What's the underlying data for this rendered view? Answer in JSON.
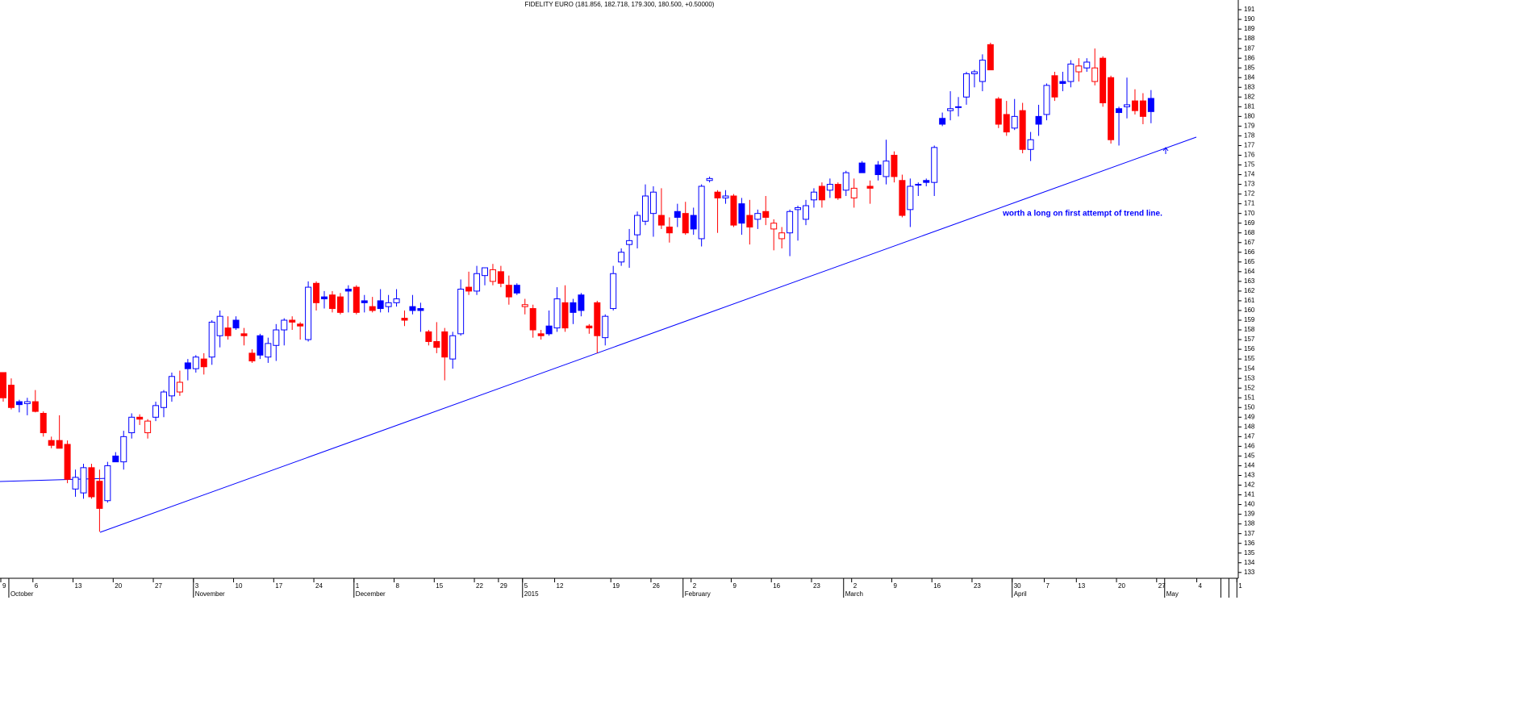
{
  "chart_data": {
    "type": "candlestick",
    "title": "FIDELITY EURO (181.856, 182.718, 179.300, 180.500, +0.50000)",
    "annotation": "worth a long on first attempt of trend line.",
    "up_color": "#0000ff",
    "down_color": "#ff0000",
    "categories": [
      "9",
      null,
      null,
      null,
      "6",
      null,
      null,
      null,
      null,
      "13",
      null,
      null,
      null,
      null,
      "20",
      null,
      null,
      null,
      null,
      "27",
      null,
      null,
      null,
      null,
      "3",
      null,
      null,
      null,
      null,
      "10",
      null,
      null,
      null,
      null,
      "17",
      null,
      null,
      null,
      null,
      "24",
      null,
      null,
      null,
      null,
      "1",
      null,
      null,
      null,
      null,
      "8",
      null,
      null,
      null,
      null,
      "15",
      null,
      null,
      null,
      null,
      "22",
      null,
      null,
      "29",
      null,
      null,
      "5",
      null,
      null,
      null,
      "12",
      null,
      null,
      null,
      null,
      null,
      null,
      "19",
      null,
      null,
      null,
      null,
      "26",
      null,
      null,
      null,
      null,
      "2",
      null,
      null,
      null,
      null,
      "9",
      null,
      null,
      null,
      null,
      "16",
      null,
      null,
      null,
      null,
      "23",
      null,
      null,
      null,
      null,
      "2",
      null,
      null,
      null,
      null,
      "9",
      null,
      null,
      null,
      null,
      "16",
      null,
      null,
      null,
      null,
      "23",
      null,
      null,
      null,
      null,
      "30",
      null,
      null,
      null,
      "7",
      null,
      null,
      null,
      "13",
      null,
      null,
      null,
      null,
      "20",
      null,
      null,
      null,
      null,
      "27",
      null,
      null,
      null,
      null,
      "4",
      null,
      null,
      null,
      null,
      "1"
    ],
    "months": [
      null,
      "October",
      null,
      null,
      null,
      null,
      null,
      null,
      null,
      null,
      null,
      null,
      null,
      null,
      null,
      null,
      null,
      null,
      null,
      null,
      null,
      null,
      null,
      null,
      "November",
      null,
      null,
      null,
      null,
      null,
      null,
      null,
      null,
      null,
      null,
      null,
      null,
      null,
      null,
      null,
      null,
      null,
      null,
      null,
      "December",
      null,
      null,
      null,
      null,
      null,
      null,
      null,
      null,
      null,
      null,
      null,
      null,
      null,
      null,
      null,
      null,
      null,
      null,
      null,
      null,
      "2015",
      null,
      null,
      null,
      null,
      null,
      null,
      null,
      null,
      null,
      null,
      null,
      null,
      null,
      null,
      null,
      null,
      null,
      null,
      null,
      "February",
      null,
      null,
      null,
      null,
      null,
      null,
      null,
      null,
      null,
      null,
      null,
      null,
      null,
      null,
      null,
      null,
      null,
      null,
      null,
      "March",
      null,
      null,
      null,
      null,
      null,
      null,
      null,
      null,
      null,
      null,
      null,
      null,
      null,
      null,
      null,
      null,
      null,
      null,
      null,
      null,
      "April",
      null,
      null,
      null,
      null,
      null,
      null,
      null,
      null,
      null,
      null,
      null,
      null,
      null,
      null,
      null,
      null,
      null,
      null,
      "May",
      null,
      null,
      null,
      null,
      null,
      null
    ],
    "open": [
      153.6,
      152.3,
      150.6,
      150.4,
      150.6,
      149.4,
      146.6,
      146.6,
      146.2,
      141.6,
      141.2,
      143.8,
      142.4,
      140.4,
      145.0,
      144.4,
      147.4,
      149.0,
      147.4,
      149.0,
      150.0,
      151.2,
      151.6,
      154.6,
      154.0,
      155.0,
      155.2,
      157.4,
      158.2,
      159.0,
      157.6,
      155.6,
      157.4,
      155.2,
      156.4,
      158.0,
      159.0,
      158.6,
      157.0,
      162.8,
      161.4,
      161.6,
      161.4,
      162.2,
      162.4,
      161.0,
      160.4,
      161.0,
      160.4,
      160.8,
      159.2,
      160.4,
      160.2,
      157.8,
      156.8,
      157.8,
      155.0,
      157.6,
      162.4,
      162.0,
      163.6,
      163.0,
      164.0,
      162.6,
      162.6,
      160.4,
      160.2,
      157.6,
      158.4,
      158.2,
      160.8,
      160.8,
      161.6,
      158.4,
      160.8,
      157.2,
      160.2,
      165.0,
      166.8,
      167.8,
      169.2,
      170.0,
      169.8,
      168.6,
      170.2,
      170.0,
      169.8,
      167.4,
      173.4,
      172.2,
      171.6,
      171.8,
      171.0,
      169.8,
      169.4,
      170.2,
      168.4,
      167.4,
      168.0,
      170.4,
      169.4,
      171.4,
      172.8,
      172.4,
      173.0,
      172.4,
      171.6,
      175.2,
      172.8,
      175.0,
      173.8,
      176.0,
      173.4,
      170.4,
      173.0,
      173.4,
      173.2,
      179.8,
      180.6,
      181.0,
      182.0,
      184.4,
      183.6,
      187.4,
      181.8,
      180.2,
      178.8,
      180.6,
      176.6,
      180.0,
      180.2,
      184.2,
      183.6,
      183.6,
      184.6,
      185.0,
      183.6,
      186.0,
      184.0,
      180.8,
      181.0,
      181.6,
      181.6,
      181.856,
      null,
      null,
      null,
      null,
      null,
      null,
      null,
      null,
      null,
      null,
      null
    ],
    "high": [
      153.6,
      153.0,
      150.8,
      151.0,
      151.8,
      149.6,
      147.0,
      149.2,
      146.6,
      143.6,
      144.2,
      144.2,
      143.6,
      144.4,
      145.4,
      147.6,
      149.4,
      149.3,
      148.8,
      150.6,
      151.8,
      153.6,
      153.8,
      155.0,
      155.4,
      155.6,
      159.0,
      160.0,
      159.4,
      159.4,
      158.2,
      156.0,
      157.6,
      157.2,
      158.6,
      159.2,
      159.4,
      158.8,
      163.0,
      163.0,
      162.0,
      162.0,
      161.8,
      162.6,
      162.6,
      161.6,
      161.4,
      162.2,
      161.6,
      162.2,
      160.0,
      161.6,
      160.8,
      158.0,
      158.8,
      158.2,
      157.8,
      163.2,
      164.0,
      164.6,
      164.4,
      164.8,
      164.6,
      163.6,
      162.8,
      161.2,
      160.6,
      158.0,
      160.0,
      162.4,
      162.6,
      161.2,
      161.8,
      158.6,
      161.0,
      159.6,
      164.6,
      166.4,
      168.4,
      170.2,
      173.0,
      172.8,
      172.6,
      169.6,
      171.0,
      171.2,
      170.6,
      173.0,
      173.8,
      172.4,
      172.4,
      172.0,
      171.6,
      171.4,
      170.4,
      171.8,
      169.4,
      168.6,
      170.4,
      170.8,
      171.4,
      172.6,
      173.2,
      173.6,
      173.2,
      174.4,
      173.6,
      175.4,
      173.4,
      175.4,
      177.6,
      176.4,
      174.0,
      173.6,
      173.2,
      173.6,
      177.0,
      180.4,
      182.6,
      182.0,
      184.6,
      184.8,
      186.4,
      187.6,
      182.0,
      181.6,
      181.8,
      181.4,
      178.4,
      181.2,
      183.4,
      184.6,
      184.6,
      185.8,
      186.0,
      186.0,
      187.0,
      186.2,
      184.2,
      181.0,
      184.0,
      182.8,
      182.4,
      182.718,
      null,
      null,
      null,
      null,
      null,
      null,
      null,
      null,
      null,
      null,
      null
    ],
    "low": [
      150.6,
      149.8,
      149.5,
      149.2,
      149.5,
      147.0,
      145.8,
      145.8,
      142.2,
      140.8,
      140.6,
      140.6,
      137.2,
      140.2,
      144.4,
      143.6,
      146.8,
      148.2,
      146.8,
      148.6,
      149.0,
      150.6,
      151.2,
      152.8,
      153.6,
      153.4,
      154.4,
      156.2,
      157.0,
      158.0,
      156.4,
      154.6,
      155.0,
      154.6,
      154.8,
      156.4,
      158.0,
      157.0,
      156.8,
      160.0,
      160.2,
      159.8,
      159.6,
      159.8,
      159.6,
      159.8,
      159.8,
      159.8,
      159.8,
      160.4,
      158.4,
      159.6,
      157.8,
      156.4,
      155.6,
      152.8,
      154.0,
      157.4,
      161.6,
      161.6,
      162.6,
      162.6,
      162.4,
      160.6,
      161.6,
      159.6,
      157.2,
      157.0,
      157.4,
      157.8,
      157.8,
      158.6,
      159.4,
      157.6,
      155.6,
      156.4,
      160.0,
      164.6,
      164.4,
      166.4,
      168.8,
      167.6,
      168.4,
      167.0,
      168.6,
      167.8,
      167.8,
      166.6,
      173.2,
      168.0,
      171.0,
      168.6,
      167.8,
      166.8,
      168.4,
      168.8,
      166.2,
      166.4,
      165.6,
      167.2,
      168.8,
      170.6,
      170.6,
      171.6,
      171.4,
      171.8,
      170.6,
      174.2,
      171.0,
      173.4,
      173.0,
      173.2,
      169.6,
      168.6,
      171.8,
      172.8,
      171.8,
      179.0,
      179.6,
      180.0,
      181.2,
      183.0,
      182.6,
      184.8,
      178.8,
      178.0,
      178.6,
      176.2,
      175.4,
      178.0,
      179.6,
      181.6,
      182.6,
      183.0,
      183.6,
      184.6,
      183.2,
      181.0,
      177.2,
      177.0,
      179.8,
      180.2,
      179.2,
      179.3,
      null,
      null,
      null,
      null,
      null,
      null,
      null,
      null,
      null,
      null,
      null
    ],
    "close": [
      151.0,
      150.0,
      150.3,
      150.6,
      149.6,
      147.4,
      146.1,
      145.8,
      142.6,
      142.8,
      143.8,
      140.8,
      139.6,
      144.0,
      144.4,
      147.0,
      149.0,
      148.8,
      148.6,
      150.2,
      151.6,
      153.2,
      152.6,
      154.0,
      155.2,
      154.2,
      158.8,
      159.4,
      157.4,
      158.2,
      157.4,
      154.8,
      155.4,
      156.6,
      158.0,
      159.0,
      158.8,
      158.4,
      162.4,
      160.8,
      161.2,
      160.2,
      159.8,
      162.0,
      159.8,
      160.8,
      160.0,
      160.2,
      160.8,
      161.2,
      159.0,
      160.0,
      160.0,
      156.8,
      156.2,
      155.2,
      157.4,
      162.2,
      162.0,
      163.8,
      164.4,
      164.2,
      162.8,
      161.4,
      161.8,
      160.6,
      158.0,
      157.4,
      157.6,
      161.2,
      158.2,
      159.8,
      160.0,
      158.2,
      157.4,
      159.4,
      163.8,
      166.0,
      167.2,
      169.8,
      171.8,
      172.2,
      168.8,
      168.0,
      169.6,
      168.0,
      168.4,
      172.8,
      173.6,
      171.6,
      171.8,
      168.8,
      169.0,
      168.6,
      170.0,
      169.6,
      169.0,
      168.0,
      170.2,
      170.6,
      170.8,
      172.2,
      171.4,
      173.0,
      171.6,
      174.2,
      172.6,
      174.2,
      172.6,
      174.0,
      175.4,
      173.8,
      169.8,
      172.8,
      173.0,
      173.2,
      176.8,
      179.2,
      180.8,
      181.0,
      184.4,
      184.6,
      185.8,
      184.8,
      179.2,
      178.4,
      180.0,
      176.6,
      177.6,
      179.2,
      183.2,
      182.0,
      183.4,
      185.4,
      185.2,
      185.6,
      185.0,
      181.4,
      177.6,
      180.4,
      181.2,
      180.6,
      180.0,
      180.5,
      null,
      null,
      null,
      null,
      null,
      null,
      null,
      null,
      null,
      null,
      null
    ],
    "ylim": [
      132.4,
      192
    ],
    "yticks": [
      133,
      134,
      135,
      136,
      137,
      138,
      139,
      140,
      141,
      142,
      143,
      144,
      145,
      146,
      147,
      148,
      149,
      150,
      151,
      152,
      153,
      154,
      155,
      156,
      157,
      158,
      159,
      160,
      161,
      162,
      163,
      164,
      165,
      166,
      167,
      168,
      169,
      170,
      171,
      172,
      173,
      174,
      175,
      176,
      177,
      178,
      179,
      180,
      181,
      182,
      183,
      184,
      185,
      186,
      187,
      188,
      189,
      190,
      191
    ],
    "grid": false
  }
}
